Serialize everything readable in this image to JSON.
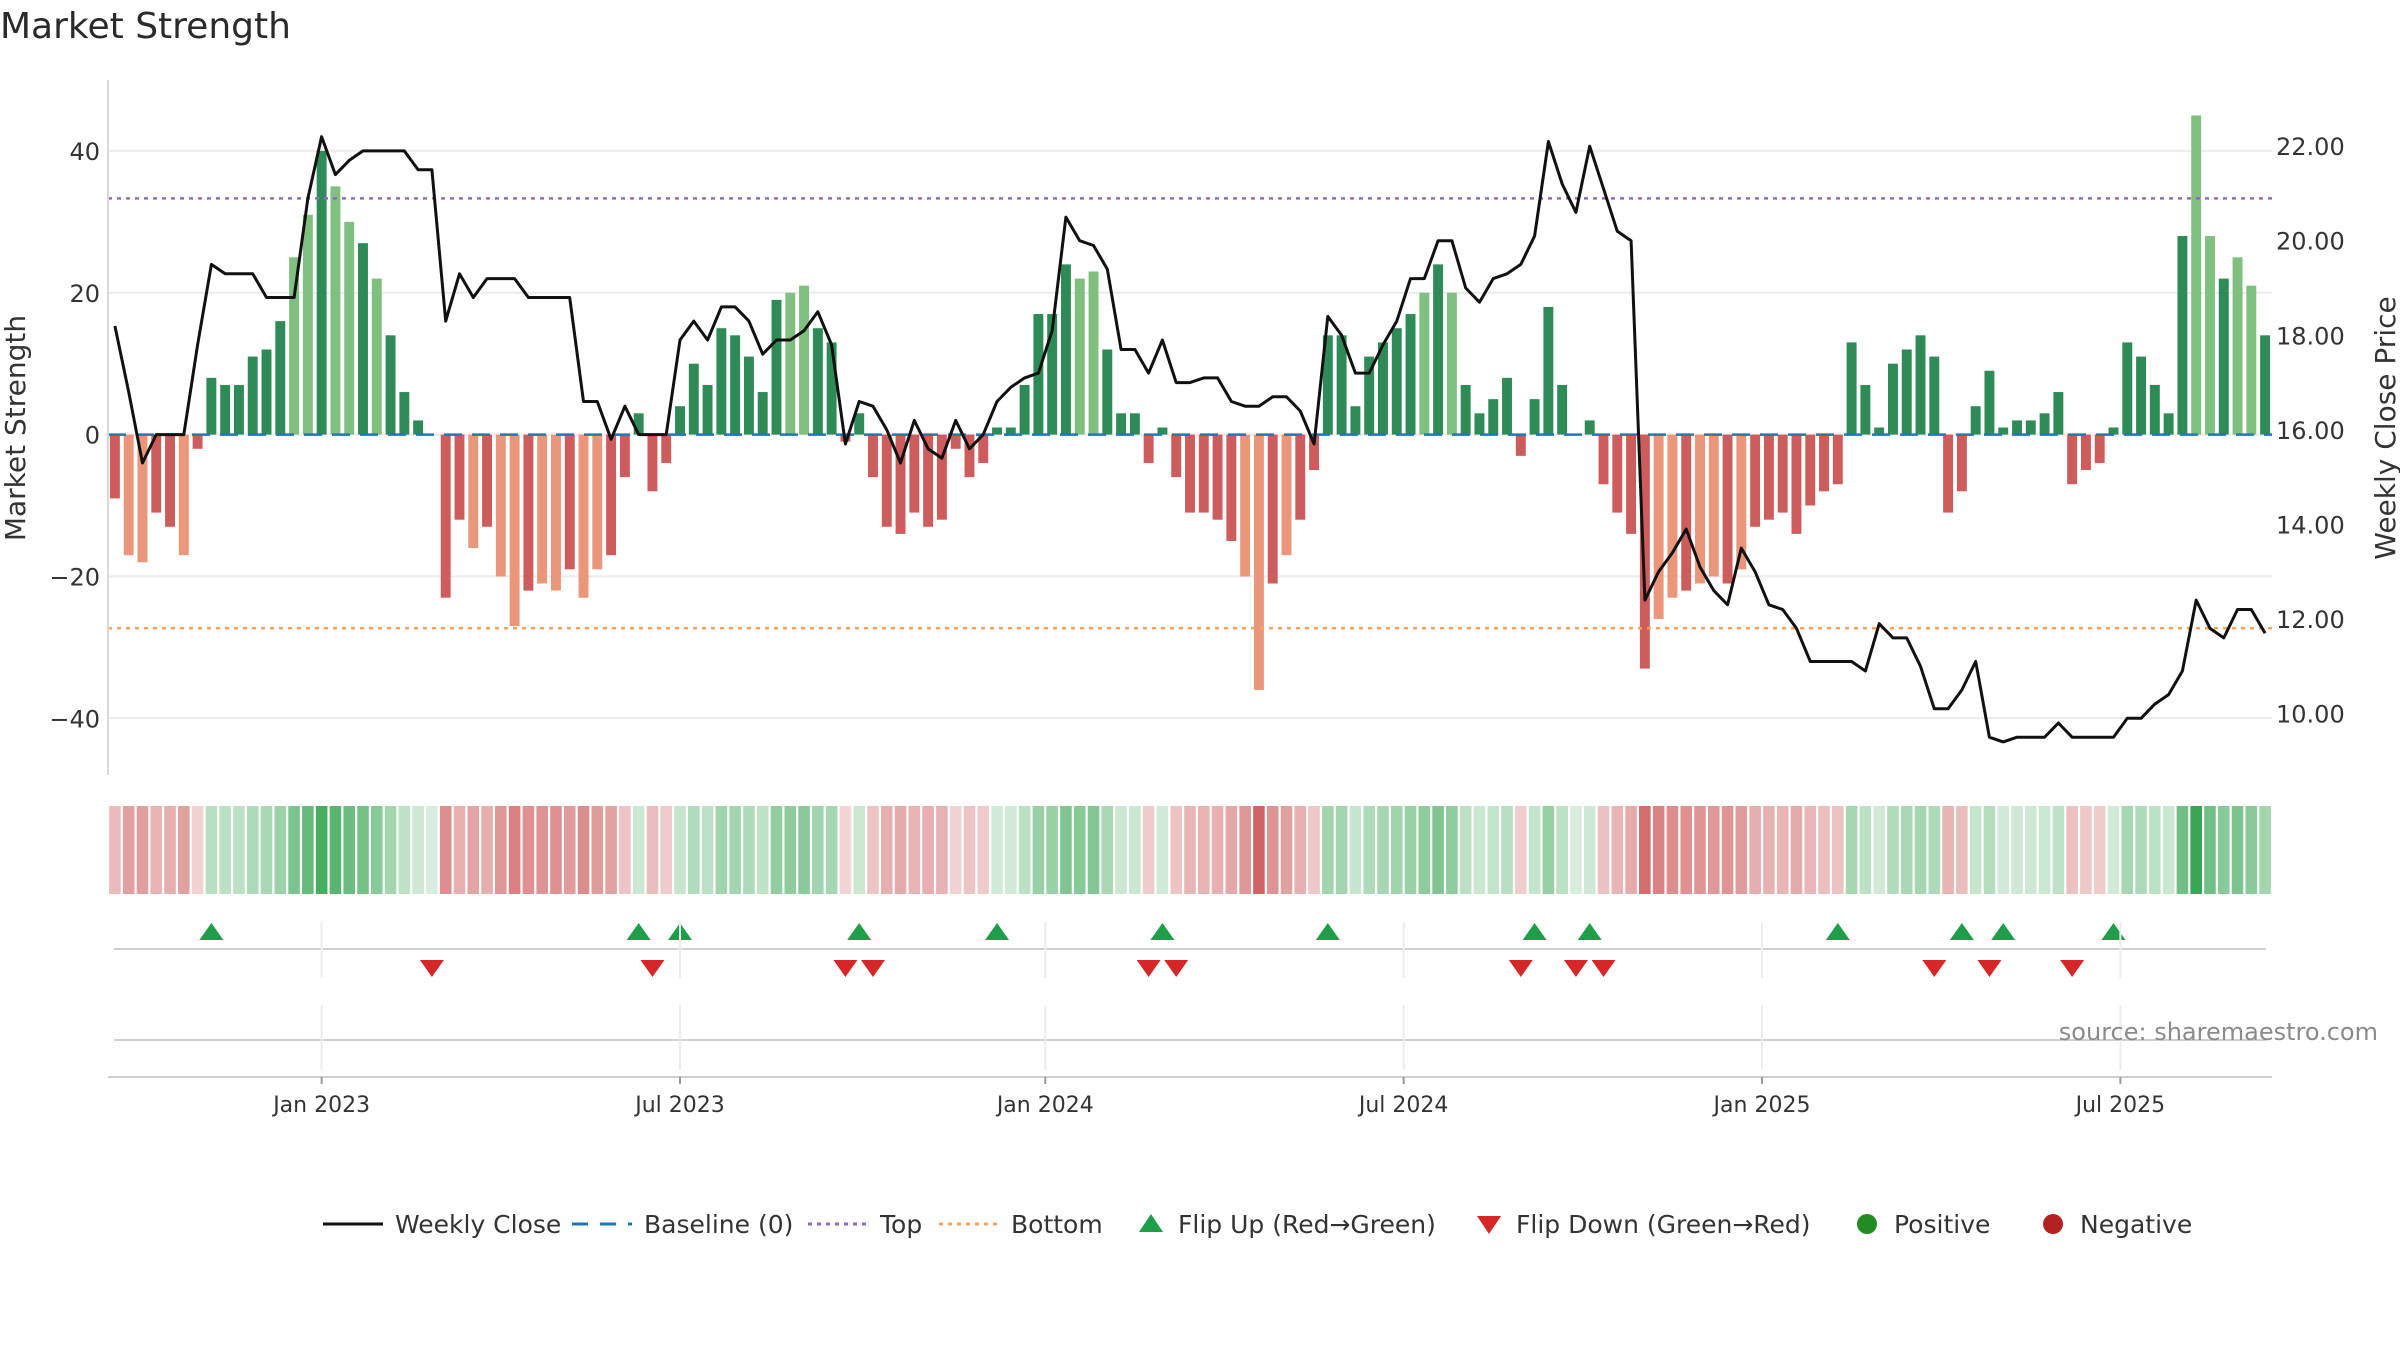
{
  "title": "Market Strength",
  "source": "source: sharemaestro.com",
  "colors": {
    "bar_pos_dark": "#2e8b57",
    "bar_pos_light": "#7fbf7f",
    "bar_neg_dark": "#cd5c5c",
    "bar_neg_light": "#e9967a",
    "close_line": "#111111",
    "baseline": "#1f77b4",
    "top_line": "#9467bd",
    "bottom_line": "#f4a460",
    "flip_up": "#1e9e48",
    "flip_down": "#d62728",
    "positive": "#228b22",
    "negative": "#b22222",
    "grid": "#ebebeb"
  },
  "chart_data": {
    "type": "bar",
    "title": "Market Strength",
    "ylabel": "Market Strength",
    "y2label": "Weekly Close Price",
    "ylim": [
      -48,
      50
    ],
    "y2lim": [
      8.7,
      23.4
    ],
    "yticks": [
      -40,
      -20,
      0,
      20,
      40
    ],
    "ytick_labels": [
      "−40",
      "−20",
      "0",
      "20",
      "40"
    ],
    "y2ticks": [
      10,
      12,
      14,
      16,
      18,
      20,
      22
    ],
    "y2tick_labels": [
      "10.00",
      "12.00",
      "14.00",
      "16.00",
      "18.00",
      "20.00",
      "22.00"
    ],
    "top_level": 33.3,
    "bottom_level": -27.3,
    "baseline": 0,
    "x_start": "2022-09-16",
    "x_step_weeks": 1,
    "x_ticks": [
      {
        "label": "Jan 2023",
        "index": 15
      },
      {
        "label": "Jul 2023",
        "index": 41
      },
      {
        "label": "Jan 2024",
        "index": 67.5
      },
      {
        "label": "Jul 2024",
        "index": 93.5
      },
      {
        "label": "Jan 2025",
        "index": 119.5
      },
      {
        "label": "Jul 2025",
        "index": 145.5
      }
    ],
    "strength": [
      -9,
      -17,
      -18,
      -11,
      -13,
      -17,
      -2,
      8,
      7,
      7,
      11,
      12,
      16,
      25,
      31,
      40,
      35,
      30,
      27,
      22,
      14,
      6,
      2,
      0,
      -23,
      -12,
      -16,
      -13,
      -20,
      -27,
      -22,
      -21,
      -22,
      -19,
      -23,
      -19,
      -17,
      -6,
      3,
      -8,
      -4,
      4,
      10,
      7,
      15,
      14,
      11,
      6,
      19,
      20,
      21,
      15,
      13,
      -1,
      3,
      -6,
      -13,
      -14,
      -11,
      -13,
      -12,
      -2,
      -6,
      -4,
      1,
      1,
      7,
      17,
      17,
      24,
      22,
      23,
      12,
      3,
      3,
      -4,
      1,
      -6,
      -11,
      -11,
      -12,
      -15,
      -20,
      -36,
      -21,
      -17,
      -12,
      -5,
      14,
      14,
      4,
      11,
      13,
      15,
      17,
      20,
      24,
      20,
      7,
      3,
      5,
      8,
      -3,
      5,
      18,
      7,
      0,
      2,
      -7,
      -11,
      -14,
      -33,
      -26,
      -23,
      -22,
      -21,
      -20,
      -21,
      -19,
      -13,
      -12,
      -11,
      -14,
      -10,
      -8,
      -7,
      13,
      7,
      1,
      10,
      12,
      14,
      11,
      -11,
      -8,
      4,
      9,
      1,
      2,
      2,
      3,
      6,
      -7,
      -5,
      -4,
      1,
      13,
      11,
      7,
      3,
      28,
      45,
      28,
      22,
      25,
      21,
      14
    ],
    "weekly_close": [
      18.2,
      16.8,
      15.3,
      15.9,
      15.9,
      15.9,
      17.8,
      19.5,
      19.3,
      19.3,
      19.3,
      18.8,
      18.8,
      18.8,
      20.9,
      22.2,
      21.4,
      21.7,
      21.9,
      21.9,
      21.9,
      21.9,
      21.5,
      21.5,
      18.3,
      19.3,
      18.8,
      19.2,
      19.2,
      19.2,
      18.8,
      18.8,
      18.8,
      18.8,
      16.6,
      16.6,
      15.8,
      16.5,
      15.9,
      15.9,
      15.9,
      17.9,
      18.3,
      17.9,
      18.6,
      18.6,
      18.3,
      17.6,
      17.9,
      17.9,
      18.1,
      18.5,
      17.8,
      15.7,
      16.6,
      16.5,
      16.0,
      15.3,
      16.2,
      15.6,
      15.4,
      16.2,
      15.6,
      15.9,
      16.6,
      16.9,
      17.1,
      17.2,
      18.1,
      20.5,
      20.0,
      19.9,
      19.4,
      17.7,
      17.7,
      17.2,
      17.9,
      17.0,
      17.0,
      17.1,
      17.1,
      16.6,
      16.5,
      16.5,
      16.7,
      16.7,
      16.4,
      15.7,
      18.4,
      18.0,
      17.2,
      17.2,
      17.8,
      18.3,
      19.2,
      19.2,
      20.0,
      20.0,
      19.0,
      18.7,
      19.2,
      19.3,
      19.5,
      20.1,
      22.1,
      21.2,
      20.6,
      22.0,
      21.1,
      20.2,
      20.0,
      12.4,
      13.0,
      13.4,
      13.9,
      13.1,
      12.6,
      12.3,
      13.5,
      13.0,
      12.3,
      12.2,
      11.8,
      11.1,
      11.1,
      11.1,
      11.1,
      10.9,
      11.9,
      11.6,
      11.6,
      11.0,
      10.1,
      10.1,
      10.5,
      11.1,
      9.5,
      9.4,
      9.5,
      9.5,
      9.5,
      9.8,
      9.5,
      9.5,
      9.5,
      9.5,
      9.9,
      9.9,
      10.2,
      10.4,
      10.9,
      12.4,
      11.8,
      11.6,
      12.2,
      12.2,
      11.7
    ],
    "flip_up_indices": [
      7,
      38,
      41,
      54,
      64,
      76,
      88,
      103,
      107,
      125,
      134,
      137,
      145
    ],
    "flip_down_indices": [
      23,
      39,
      53,
      55,
      75,
      77,
      102,
      106,
      108,
      132,
      136,
      142
    ]
  },
  "legend": [
    {
      "key": "weekly_close",
      "label": "Weekly Close"
    },
    {
      "key": "baseline",
      "label": "Baseline (0)"
    },
    {
      "key": "top",
      "label": "Top"
    },
    {
      "key": "bottom",
      "label": "Bottom"
    },
    {
      "key": "flip_up",
      "label": "Flip Up (Red→Green)"
    },
    {
      "key": "flip_down",
      "label": "Flip Down (Green→Red)"
    },
    {
      "key": "positive",
      "label": "Positive"
    },
    {
      "key": "negative",
      "label": "Negative"
    }
  ]
}
